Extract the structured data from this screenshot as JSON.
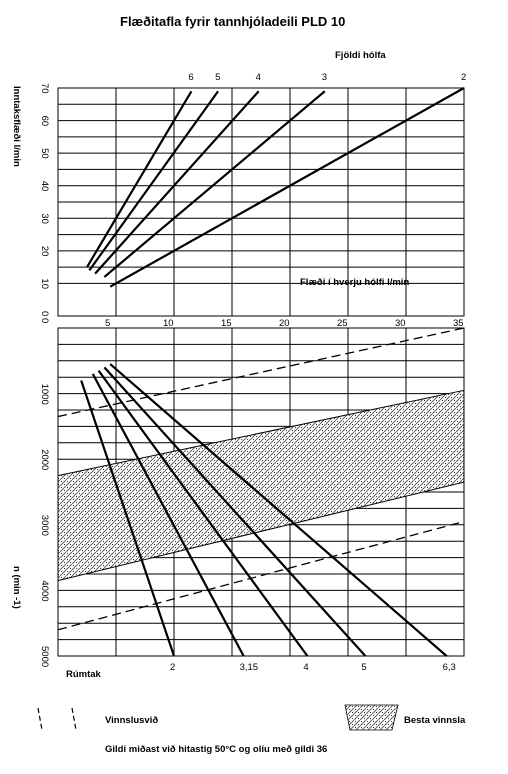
{
  "chart_data": {
    "type": "line",
    "title": "Flæðitafla fyrir tannhjóladeili PLD 10",
    "top_panel": {
      "ylabel": "Inntaksflæði l/min",
      "xlabel": "Flæði í hverju hólfi l/min",
      "xlabel_top": "Fjöldi hólfa",
      "ylim": [
        0,
        70
      ],
      "xlim": [
        0,
        35
      ],
      "y_ticks": [
        "0",
        "10",
        "20",
        "30",
        "40",
        "50",
        "60",
        "70"
      ],
      "x_ticks": [
        "5",
        "10",
        "15",
        "20",
        "25",
        "30",
        "35"
      ],
      "series": [
        {
          "name": "6",
          "x": [
            2.5,
            11.5
          ],
          "y": [
            15,
            69
          ]
        },
        {
          "name": "5",
          "x": [
            2.7,
            13.8
          ],
          "y": [
            14,
            69
          ]
        },
        {
          "name": "4",
          "x": [
            3.2,
            17.3
          ],
          "y": [
            13,
            69
          ]
        },
        {
          "name": "3",
          "x": [
            4.0,
            23.0
          ],
          "y": [
            12,
            69
          ]
        },
        {
          "name": "2",
          "x": [
            4.5,
            35.0
          ],
          "y": [
            9,
            70
          ]
        }
      ]
    },
    "bottom_panel": {
      "ylabel": "n (min -1)",
      "xlabel": "Rúmtak",
      "ylim": [
        0,
        5000
      ],
      "y_ticks": [
        "0",
        "1000",
        "2000",
        "3000",
        "4000",
        "5000"
      ],
      "series": [
        {
          "name": "2",
          "x": [
            2.0,
            10.0
          ],
          "y": [
            800,
            5000
          ]
        },
        {
          "name": "3,15",
          "x": [
            3.0,
            16.0
          ],
          "y": [
            700,
            5000
          ]
        },
        {
          "name": "4",
          "x": [
            3.5,
            21.5
          ],
          "y": [
            650,
            5000
          ]
        },
        {
          "name": "5",
          "x": [
            4.0,
            26.5
          ],
          "y": [
            600,
            5000
          ]
        },
        {
          "name": "6,3",
          "x": [
            4.5,
            33.5
          ],
          "y": [
            550,
            5000
          ]
        }
      ],
      "vinnslusvid_bounds": [
        {
          "x": [
            0,
            35
          ],
          "y": [
            1350,
            0
          ]
        },
        {
          "x": [
            0,
            35
          ],
          "y": [
            4600,
            2950
          ]
        }
      ],
      "besta_vinnsla_band": {
        "upper": {
          "x": [
            0,
            35
          ],
          "y": [
            2250,
            950
          ]
        },
        "lower": {
          "x": [
            0,
            35
          ],
          "y": [
            3850,
            2350
          ]
        }
      }
    },
    "legend": {
      "dashed": "Vinnslusvið",
      "hatched": "Besta vinnsla"
    },
    "footnote": "Gildi miðast við hitastig 50°C og olíu með gildi 36"
  }
}
